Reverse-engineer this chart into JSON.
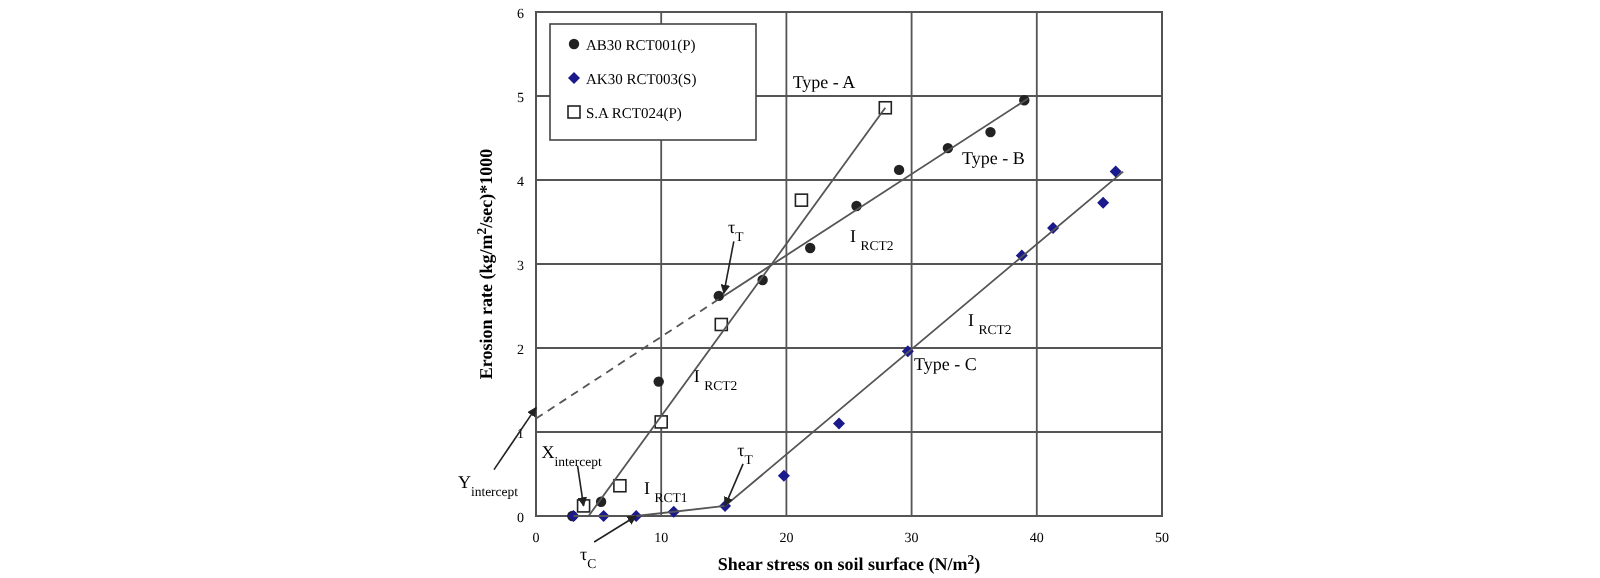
{
  "chart_data": {
    "type": "scatter",
    "xlabel": "Shear stress on soil surface (N/m$^{2}$)",
    "ylabel": "Erosion rate (kg/m$^{2}$/sec)*1000",
    "xlim": [
      0,
      50
    ],
    "ylim": [
      0,
      6
    ],
    "xticks": [
      0,
      10,
      20,
      30,
      40,
      50
    ],
    "yticks": [
      0,
      1,
      2,
      3,
      4,
      5,
      6
    ],
    "grid": true,
    "legend": "top left",
    "series": [
      {
        "name": "AB30 RCT001(P)",
        "color": "#222222",
        "marker": "circle",
        "x": [
          2.9,
          5.2,
          9.8,
          14.6,
          18.1,
          21.9,
          25.6,
          29,
          32.9,
          36.3,
          39
        ],
        "values": [
          0,
          0.17,
          1.6,
          2.62,
          2.81,
          3.19,
          3.69,
          4.12,
          4.38,
          4.57,
          4.95
        ]
      },
      {
        "name": "AK30 RCT003(S)",
        "color": "#1a1a8c",
        "marker": "diamond",
        "x": [
          3,
          5.4,
          8,
          11,
          15.1,
          19.8,
          24.2,
          29.7,
          38.8,
          41.3,
          45.3,
          46.3
        ],
        "values": [
          0,
          0,
          0,
          0.05,
          0.12,
          0.48,
          1.1,
          1.96,
          3.1,
          3.43,
          3.73,
          4.1
        ]
      },
      {
        "name": "S.A RCT024(P)",
        "color": "#222222",
        "marker": "square",
        "x": [
          3.8,
          6.7,
          10,
          14.8,
          21.2,
          27.9
        ],
        "values": [
          0.12,
          0.36,
          1.12,
          2.28,
          3.76,
          4.86
        ]
      },
      {
        "type": "line",
        "color": "#555555",
        "line_style": "solid",
        "marker": "none",
        "x": [
          4.2,
          27.9
        ],
        "values": [
          0,
          4.86
        ]
      },
      {
        "type": "line",
        "color": "#555555",
        "line_style": "dashed",
        "marker": "none",
        "x": [
          0,
          15
        ],
        "values": [
          1.16,
          2.62
        ]
      },
      {
        "type": "line",
        "color": "#555555",
        "line_style": "solid",
        "marker": "none",
        "x": [
          15,
          39.3
        ],
        "values": [
          2.62,
          4.97
        ]
      },
      {
        "type": "line",
        "color": "#555555",
        "line_style": "solid",
        "marker": "none",
        "x": [
          3,
          8,
          15.1,
          46.9
        ],
        "values": [
          0,
          0,
          0.12,
          4.1
        ]
      }
    ],
    "annotations": [
      "Type - A",
      "Type - B",
      "Type - C",
      "I $_{RCT2}$",
      "I $_{RCT2}$",
      {
        "text": "I $_{RCT2}$",
        "x": 12.6,
        "y": 1.6
      },
      "I $_{RCT1}$",
      {
        "text": "τ$_{T}$",
        "x": 15,
        "y": 2.65
      },
      {
        "text": "τ$_{T}$",
        "x": 15.1,
        "y": 0.12
      },
      {
        "text": "τ$_{C}$",
        "x": 8,
        "y": 0
      },
      {
        "text": "X$_{intercept}$",
        "x": 3.8,
        "y": 0.12
      },
      {
        "text": "Y$_{intercept}$",
        "x": 0,
        "y": 1.29
      }
    ]
  }
}
